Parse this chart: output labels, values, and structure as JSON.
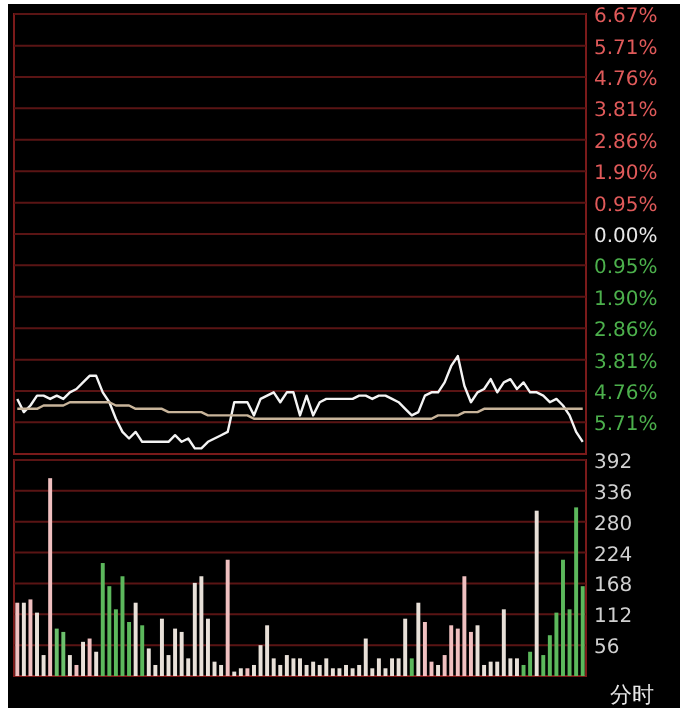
{
  "chart_data": [
    {
      "type": "line",
      "categories": [
        null,
        null,
        null,
        null,
        null,
        null,
        null,
        null,
        null,
        null,
        null,
        null,
        null,
        null,
        null,
        null,
        null,
        null,
        null,
        null,
        null,
        null,
        null,
        null,
        null,
        null,
        null,
        null,
        null,
        null,
        null,
        null,
        null,
        null,
        null,
        null,
        null,
        null,
        null,
        null,
        null,
        null,
        null,
        null,
        null,
        null,
        null,
        null,
        null,
        null,
        null,
        null,
        null,
        null,
        null,
        null,
        null,
        null,
        null,
        null,
        null,
        null,
        null,
        null,
        null,
        null,
        null,
        null,
        null,
        null,
        null,
        null,
        null,
        null,
        null,
        null,
        null,
        null,
        null,
        null,
        null,
        null,
        null,
        null,
        null,
        null,
        null
      ],
      "series": [
        {
          "color": "#f4f4f4",
          "values": [
            -5.0,
            -5.4,
            -5.2,
            -4.9,
            -4.9,
            -5.0,
            -4.9,
            -5.0,
            -4.8,
            -4.7,
            -4.5,
            -4.3,
            -4.3,
            -4.8,
            -5.1,
            -5.6,
            -6.0,
            -6.2,
            -6.0,
            -6.3,
            -6.3,
            -6.3,
            -6.3,
            -6.3,
            -6.1,
            -6.3,
            -6.2,
            -6.5,
            -6.5,
            -6.3,
            -6.2,
            -6.1,
            -6.0,
            -5.1,
            -5.1,
            -5.1,
            -5.5,
            -5.0,
            -4.9,
            -4.8,
            -5.1,
            -4.8,
            -4.8,
            -5.5,
            -4.9,
            -5.5,
            -5.1,
            -5.0,
            -5.0,
            -5.0,
            -5.0,
            -5.0,
            -4.9,
            -4.9,
            -5.0,
            -4.9,
            -4.9,
            -5.0,
            -5.1,
            -5.3,
            -5.5,
            -5.4,
            -4.9,
            -4.8,
            -4.8,
            -4.5,
            -4.0,
            -3.7,
            -4.6,
            -5.1,
            -4.8,
            -4.7,
            -4.4,
            -4.8,
            -4.5,
            -4.4,
            -4.7,
            -4.5,
            -4.8,
            -4.8,
            -4.9,
            -5.1,
            -5.0,
            -5.2,
            -5.5,
            -6.0,
            -6.3
          ]
        },
        {
          "color": "#c8b49a",
          "values": [
            -5.3,
            -5.3,
            -5.3,
            -5.3,
            -5.2,
            -5.2,
            -5.2,
            -5.2,
            -5.1,
            -5.1,
            -5.1,
            -5.1,
            -5.1,
            -5.1,
            -5.1,
            -5.2,
            -5.2,
            -5.2,
            -5.3,
            -5.3,
            -5.3,
            -5.3,
            -5.3,
            -5.4,
            -5.4,
            -5.4,
            -5.4,
            -5.4,
            -5.4,
            -5.5,
            -5.5,
            -5.5,
            -5.5,
            -5.5,
            -5.5,
            -5.5,
            -5.6,
            -5.6,
            -5.6,
            -5.6,
            -5.6,
            -5.6,
            -5.6,
            -5.6,
            -5.6,
            -5.6,
            -5.6,
            -5.6,
            -5.6,
            -5.6,
            -5.6,
            -5.6,
            -5.6,
            -5.6,
            -5.6,
            -5.6,
            -5.6,
            -5.6,
            -5.6,
            -5.6,
            -5.6,
            -5.6,
            -5.6,
            -5.6,
            -5.5,
            -5.5,
            -5.5,
            -5.5,
            -5.4,
            -5.4,
            -5.4,
            -5.3,
            -5.3,
            -5.3,
            -5.3,
            -5.3,
            -5.3,
            -5.3,
            -5.3,
            -5.3,
            -5.3,
            -5.3,
            -5.3,
            -5.3,
            -5.3,
            -5.3,
            -5.3
          ]
        }
      ],
      "ylim": [
        -6.67,
        6.67
      ],
      "yticks": [
        {
          "value": 6.67,
          "label": "6.67%"
        },
        {
          "value": 5.71,
          "label": "5.71%"
        },
        {
          "value": 4.76,
          "label": "4.76%"
        },
        {
          "value": 3.81,
          "label": "3.81%"
        },
        {
          "value": 2.86,
          "label": "2.86%"
        },
        {
          "value": 1.9,
          "label": "1.90%"
        },
        {
          "value": 0.95,
          "label": "0.95%"
        },
        {
          "value": 0,
          "label": "0.00%"
        },
        {
          "value": -0.95,
          "label": "0.95%"
        },
        {
          "value": -1.9,
          "label": "1.90%"
        },
        {
          "value": -2.86,
          "label": "2.86%"
        },
        {
          "value": -3.81,
          "label": "3.81%"
        },
        {
          "value": -4.76,
          "label": "4.76%"
        },
        {
          "value": -5.71,
          "label": "5.71%"
        }
      ],
      "grid": "y",
      "tick_labels": "y"
    },
    {
      "type": "bar",
      "categories": [
        null,
        null,
        null,
        null,
        null,
        null,
        null,
        null,
        null,
        null,
        null,
        null,
        null,
        null,
        null,
        null,
        null,
        null,
        null,
        null,
        null,
        null,
        null,
        null,
        null,
        null,
        null,
        null,
        null,
        null,
        null,
        null,
        null,
        null,
        null,
        null,
        null,
        null,
        null,
        null,
        null,
        null,
        null,
        null,
        null,
        null,
        null,
        null,
        null,
        null,
        null,
        null,
        null,
        null,
        null,
        null,
        null,
        null,
        null,
        null,
        null,
        null,
        null,
        null,
        null,
        null,
        null,
        null,
        null,
        null,
        null,
        null,
        null,
        null,
        null,
        null,
        null,
        null,
        null,
        null,
        null,
        null,
        null,
        null,
        null,
        null,
        null
      ],
      "values": [
        133,
        133,
        139,
        115,
        38,
        359,
        86,
        80,
        38,
        20,
        62,
        68,
        44,
        205,
        163,
        121,
        181,
        98,
        133,
        92,
        50,
        20,
        104,
        38,
        86,
        80,
        32,
        169,
        181,
        104,
        26,
        20,
        211,
        8,
        14,
        14,
        20,
        56,
        92,
        32,
        20,
        38,
        32,
        32,
        20,
        26,
        20,
        32,
        14,
        14,
        20,
        14,
        20,
        68,
        14,
        32,
        14,
        32,
        32,
        104,
        32,
        133,
        98,
        26,
        20,
        38,
        92,
        86,
        181,
        80,
        92,
        20,
        26,
        26,
        121,
        32,
        32,
        20,
        44,
        300,
        38,
        74,
        115,
        211,
        121,
        306,
        163
      ],
      "colors": [
        "#f0c0c0",
        "#e8e0d8",
        "#f0c0c0",
        "#e8e0d8",
        "#e8e0d8",
        "#f0c0c0",
        "#6cc06c",
        "#6cc06c",
        "#e8e0d8",
        "#f0c0c0",
        "#e8e0d8",
        "#f0c0c0",
        "#e8e0d8",
        "#5cb85c",
        "#5cb85c",
        "#5cb85c",
        "#5cb85c",
        "#5cb85c",
        "#e8e0d8",
        "#5cb85c",
        "#e8e0d8",
        "#e8e0d8",
        "#e8e0d8",
        "#e8e0d8",
        "#e8e0d8",
        "#e8e0d8",
        "#e8e0d8",
        "#e8e0d8",
        "#e8e0d8",
        "#e8e0d8",
        "#e8e0d8",
        "#e8e0d8",
        "#f0c0c0",
        "#e8e0d8",
        "#e8e0d8",
        "#f0c0c0",
        "#e8e0d8",
        "#e8e0d8",
        "#e8e0d8",
        "#e8e0d8",
        "#e8e0d8",
        "#e8e0d8",
        "#e8e0d8",
        "#e8e0d8",
        "#e8e0d8",
        "#e8e0d8",
        "#e8e0d8",
        "#e8e0d8",
        "#e8e0d8",
        "#e8e0d8",
        "#e8e0d8",
        "#e8e0d8",
        "#e8e0d8",
        "#e8e0d8",
        "#e8e0d8",
        "#e8e0d8",
        "#e8e0d8",
        "#e8e0d8",
        "#e8e0d8",
        "#e8e0d8",
        "#5cb85c",
        "#e8e0d8",
        "#f0c0c0",
        "#f0c0c0",
        "#e8e0d8",
        "#f0c0c0",
        "#f0c0c0",
        "#f0c0c0",
        "#f0c0c0",
        "#f0c0c0",
        "#e8e0d8",
        "#e8e0d8",
        "#e8e0d8",
        "#e8e0d8",
        "#e8e0d8",
        "#e8e0d8",
        "#e8e0d8",
        "#5cb85c",
        "#5cb85c",
        "#e8e0d8",
        "#5cb85c",
        "#5cb85c",
        "#5cb85c",
        "#5cb85c",
        "#5cb85c",
        "#5cb85c",
        "#5cb85c"
      ],
      "ylim": [
        0,
        392
      ],
      "yticks": [
        56,
        112,
        168,
        224,
        280,
        336,
        392
      ],
      "grid": "y",
      "tick_labels": "y",
      "annotations": [
        "分时"
      ]
    }
  ]
}
